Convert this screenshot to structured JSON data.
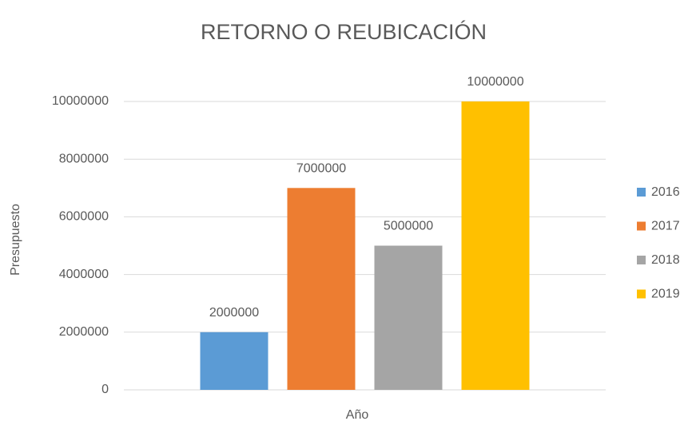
{
  "chart_data": {
    "type": "bar",
    "title": "RETORNO O REUBICACIÓN",
    "xlabel": "Año",
    "ylabel": "Presupuesto",
    "categories": [
      null
    ],
    "series": [
      {
        "name": "2016",
        "color": "#5b9bd5",
        "values": [
          2000000
        ]
      },
      {
        "name": "2017",
        "color": "#ed7d31",
        "values": [
          7000000
        ]
      },
      {
        "name": "2018",
        "color": "#a5a5a5",
        "values": [
          5000000
        ]
      },
      {
        "name": "2019",
        "color": "#ffc000",
        "values": [
          10000000
        ]
      }
    ],
    "ylim": [
      0,
      10000000
    ],
    "yticks": [
      0,
      2000000,
      4000000,
      6000000,
      8000000,
      10000000
    ],
    "grid": true,
    "legend": "right"
  }
}
